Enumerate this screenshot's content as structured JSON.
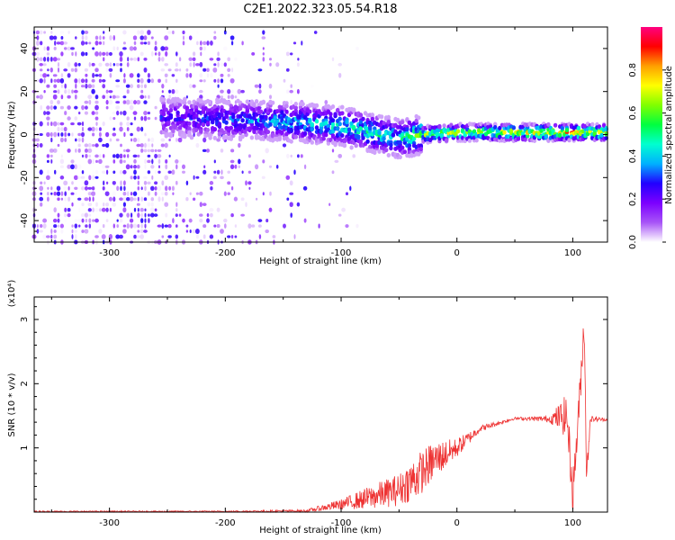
{
  "title": "C2E1.2022.323.05.54.R18",
  "chart_data": [
    {
      "type": "heatmap",
      "xlabel": "Height of straight line (km)",
      "ylabel": "Frequency (Hz)",
      "xlim": [
        -365,
        130
      ],
      "ylim": [
        -50,
        50
      ],
      "x_ticks": [
        -300,
        -200,
        -100,
        0,
        100
      ],
      "y_ticks": [
        -40,
        -20,
        0,
        20,
        40
      ],
      "colorbar": {
        "label": "Normalized spectral amplitude",
        "range": [
          0,
          1
        ],
        "ticks": [
          0.0,
          0.2,
          0.4,
          0.6,
          0.8
        ],
        "colormap": [
          "#ffffff",
          "#a855f7",
          "#7c00ff",
          "#2200ff",
          "#00b0ff",
          "#00ffd0",
          "#00ff40",
          "#80ff00",
          "#ffff00",
          "#ffa000",
          "#ff0000",
          "#ff0080"
        ]
      },
      "ridge": [
        {
          "x": -250,
          "y": 8,
          "amp": 0.3
        },
        {
          "x": -200,
          "y": 7,
          "amp": 0.35
        },
        {
          "x": -150,
          "y": 6,
          "amp": 0.45
        },
        {
          "x": -100,
          "y": 4,
          "amp": 0.55
        },
        {
          "x": -50,
          "y": -2,
          "amp": 0.5
        },
        {
          "x": -30,
          "y": 0,
          "amp": 0.7
        },
        {
          "x": 0,
          "y": 1,
          "amp": 0.75
        },
        {
          "x": 50,
          "y": 1,
          "amp": 0.8
        },
        {
          "x": 100,
          "y": 1,
          "amp": 0.9
        },
        {
          "x": 130,
          "y": 1,
          "amp": 0.8
        }
      ]
    },
    {
      "type": "line",
      "xlabel": "Height of straight line (km)",
      "ylabel": "SNR (10 * v/v)",
      "yscale_note": "(x10⁴)",
      "xlim": [
        -365,
        130
      ],
      "ylim": [
        0,
        3.35
      ],
      "x_ticks": [
        -300,
        -200,
        -100,
        0,
        100
      ],
      "y_ticks": [
        1,
        2,
        3
      ],
      "color": "#ee3333",
      "envelope": [
        {
          "x": -365,
          "y": 0.01,
          "noise": 0.01
        },
        {
          "x": -200,
          "y": 0.01,
          "noise": 0.01
        },
        {
          "x": -130,
          "y": 0.02,
          "noise": 0.02
        },
        {
          "x": -100,
          "y": 0.12,
          "noise": 0.08
        },
        {
          "x": -70,
          "y": 0.25,
          "noise": 0.2
        },
        {
          "x": -50,
          "y": 0.35,
          "noise": 0.25
        },
        {
          "x": -35,
          "y": 0.55,
          "noise": 0.35
        },
        {
          "x": -20,
          "y": 0.8,
          "noise": 0.3
        },
        {
          "x": 0,
          "y": 1.0,
          "noise": 0.15
        },
        {
          "x": 20,
          "y": 1.3,
          "noise": 0.05
        },
        {
          "x": 50,
          "y": 1.46,
          "noise": 0.02
        },
        {
          "x": 80,
          "y": 1.45,
          "noise": 0.05
        },
        {
          "x": 95,
          "y": 1.5,
          "noise": 0.35
        },
        {
          "x": 100,
          "y": 0.3,
          "noise": 0.3
        },
        {
          "x": 105,
          "y": 1.5,
          "noise": 0.3
        },
        {
          "x": 110,
          "y": 3.0,
          "noise": 0.3
        },
        {
          "x": 112,
          "y": 0.5,
          "noise": 0.3
        },
        {
          "x": 115,
          "y": 1.45,
          "noise": 0.05
        },
        {
          "x": 130,
          "y": 1.44,
          "noise": 0.02
        }
      ]
    }
  ]
}
